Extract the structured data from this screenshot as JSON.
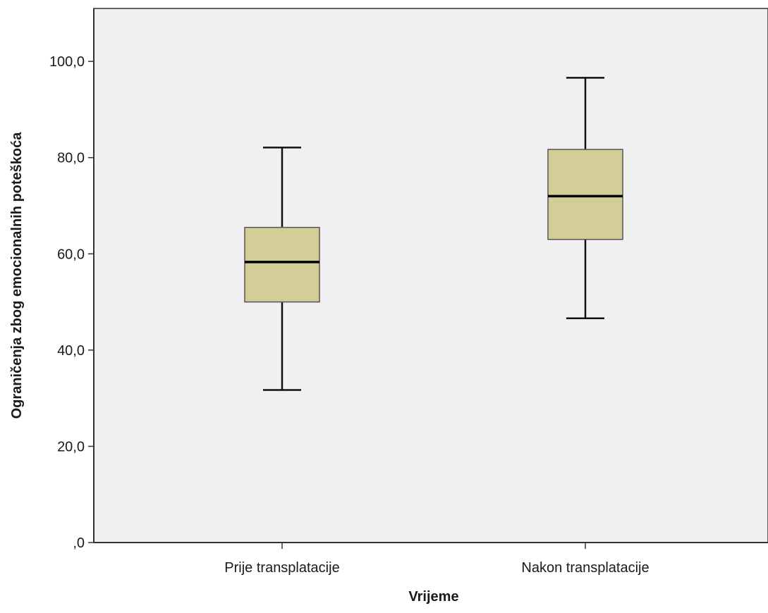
{
  "chart_data": {
    "type": "boxplot",
    "xlabel": "Vrijeme",
    "ylabel": "Ograničenja zbog emocionalnih poteškoća",
    "ylim": [
      0,
      111
    ],
    "y_ticks": [
      0,
      20,
      40,
      60,
      80,
      100
    ],
    "y_tick_labels": [
      ",0",
      "20,0",
      "40,0",
      "60,0",
      "80,0",
      "100,0"
    ],
    "grid": false,
    "categories": [
      "Prije transplatacije",
      "Nakon transplatacije"
    ],
    "boxes": [
      {
        "category": "Prije transplatacije",
        "min": 31.7,
        "q1": 50.0,
        "median": 58.3,
        "q3": 65.5,
        "max": 82.1
      },
      {
        "category": "Nakon transplatacije",
        "min": 46.6,
        "q1": 63.0,
        "median": 72.0,
        "q3": 81.7,
        "max": 96.6
      }
    ],
    "colors": {
      "plot_background": "#f0f0f0",
      "box_fill": "#d3ce97",
      "box_stroke": "#555555",
      "axis": "#333333"
    }
  }
}
